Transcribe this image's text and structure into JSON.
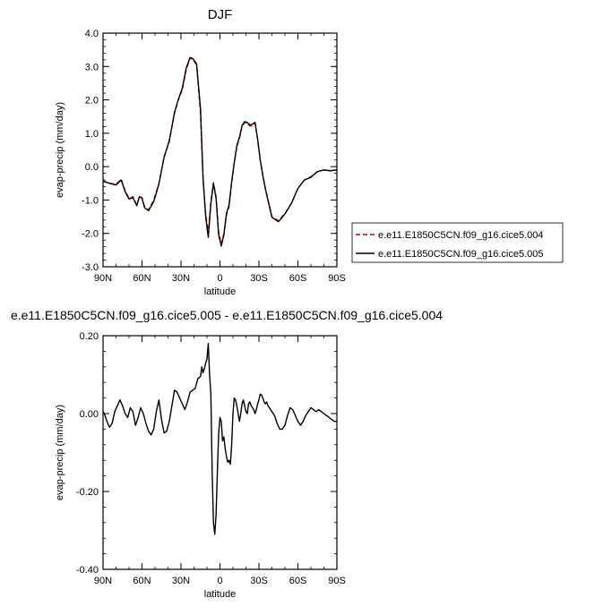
{
  "chart_data": [
    {
      "type": "line",
      "title": "DJF",
      "xlabel": "latitude",
      "ylabel": "evap-precip (mm/day)",
      "xlim": [
        90,
        -90
      ],
      "ylim": [
        -3.0,
        4.0
      ],
      "x_ticks": [
        {
          "value": 90,
          "label": "90N"
        },
        {
          "value": 60,
          "label": "60N"
        },
        {
          "value": 30,
          "label": "30N"
        },
        {
          "value": 0,
          "label": "0"
        },
        {
          "value": -30,
          "label": "30S"
        },
        {
          "value": -60,
          "label": "60S"
        },
        {
          "value": -90,
          "label": "90S"
        }
      ],
      "y_ticks": [
        {
          "value": 4.0,
          "label": "4.0"
        },
        {
          "value": 3.0,
          "label": "3.0"
        },
        {
          "value": 2.0,
          "label": "2.0"
        },
        {
          "value": 1.0,
          "label": "1.0"
        },
        {
          "value": 0.0,
          "label": "0.0"
        },
        {
          "value": -1.0,
          "label": "-1.0"
        },
        {
          "value": -2.0,
          "label": "-2.0"
        },
        {
          "value": -3.0,
          "label": "-3.0"
        }
      ],
      "grid": false,
      "legend_position": "right",
      "x": [
        90,
        85,
        80,
        76,
        73,
        70,
        67,
        64,
        62,
        60,
        58,
        55,
        51,
        47,
        43,
        39,
        35,
        32,
        29,
        26,
        23,
        21,
        18,
        15,
        13,
        11,
        9,
        7,
        5,
        3,
        1,
        -1,
        -3,
        -5,
        -7,
        -9,
        -11,
        -13,
        -15,
        -17,
        -19,
        -21,
        -23,
        -25,
        -27,
        -29,
        -31,
        -33,
        -35,
        -40,
        -45,
        -50,
        -55,
        -60,
        -65,
        -70,
        -75,
        -80,
        -85,
        -90
      ],
      "series": [
        {
          "name": "e.e11.E1850C5CN.f09_g16.cice5.004",
          "color": "#cc0000",
          "dash": true,
          "values": [
            -0.44,
            -0.5,
            -0.53,
            -0.38,
            -0.72,
            -0.95,
            -0.9,
            -1.15,
            -0.9,
            -0.93,
            -1.2,
            -1.3,
            -1.0,
            -0.5,
            0.3,
            0.75,
            1.6,
            2.0,
            2.3,
            2.9,
            3.25,
            3.22,
            3.05,
            1.6,
            -0.4,
            -1.4,
            -2.0,
            -1.05,
            -0.48,
            -0.9,
            -1.95,
            -2.32,
            -2.0,
            -1.45,
            -1.2,
            -0.5,
            0.1,
            0.6,
            0.85,
            1.2,
            1.32,
            1.3,
            1.22,
            1.22,
            1.3,
            0.8,
            0.2,
            -0.25,
            -0.65,
            -1.5,
            -1.62,
            -1.4,
            -1.1,
            -0.65,
            -0.4,
            -0.3,
            -0.15,
            -0.1,
            -0.13,
            -0.1
          ]
        },
        {
          "name": "e.e11.E1850C5CN.f09_g16.cice5.005",
          "color": "#000000",
          "dash": false,
          "values": [
            -0.43,
            -0.5,
            -0.55,
            -0.4,
            -0.75,
            -0.97,
            -0.93,
            -1.17,
            -0.9,
            -0.95,
            -1.23,
            -1.32,
            -1.05,
            -0.52,
            0.28,
            0.78,
            1.62,
            2.02,
            2.35,
            2.95,
            3.27,
            3.24,
            3.08,
            1.75,
            -0.35,
            -1.5,
            -2.12,
            -1.1,
            -0.5,
            -0.95,
            -2.05,
            -2.38,
            -2.05,
            -1.4,
            -1.15,
            -0.45,
            0.12,
            0.63,
            0.88,
            1.23,
            1.35,
            1.32,
            1.25,
            1.27,
            1.33,
            0.82,
            0.2,
            -0.27,
            -0.68,
            -1.52,
            -1.65,
            -1.42,
            -1.1,
            -0.65,
            -0.4,
            -0.32,
            -0.15,
            -0.1,
            -0.12,
            -0.1
          ]
        }
      ]
    },
    {
      "type": "line",
      "title": "e.e11.E1850C5CN.f09_g16.cice5.005 - e.e11.E1850C5CN.f09_g16.cice5.004",
      "xlabel": "latitude",
      "ylabel": "evap-precip (mm/day)",
      "xlim": [
        90,
        -90
      ],
      "ylim": [
        -0.4,
        0.2
      ],
      "x_ticks": [
        {
          "value": 90,
          "label": "90N"
        },
        {
          "value": 60,
          "label": "60N"
        },
        {
          "value": 30,
          "label": "30N"
        },
        {
          "value": 0,
          "label": "0"
        },
        {
          "value": -30,
          "label": "30S"
        },
        {
          "value": -60,
          "label": "60S"
        },
        {
          "value": -90,
          "label": "90S"
        }
      ],
      "y_ticks": [
        {
          "value": 0.2,
          "label": "0.20"
        },
        {
          "value": 0.0,
          "label": "0.00"
        },
        {
          "value": -0.2,
          "label": "-0.20"
        },
        {
          "value": -0.4,
          "label": "-0.40"
        }
      ],
      "grid": false,
      "x": [
        90,
        89,
        87,
        85,
        83,
        81,
        79,
        77,
        75,
        73,
        71,
        69,
        67,
        65,
        63,
        61,
        59,
        57,
        55,
        53,
        51,
        49,
        47,
        45,
        43,
        41,
        39,
        37,
        35,
        33,
        31,
        29,
        27,
        25,
        23,
        21,
        19,
        17,
        15,
        14,
        13,
        12,
        11,
        10,
        9,
        8,
        7,
        6,
        5,
        4,
        3,
        2,
        1,
        0,
        -1,
        -2,
        -3,
        -4,
        -5,
        -6,
        -7,
        -8,
        -9,
        -10,
        -11,
        -12,
        -13,
        -14,
        -15,
        -16,
        -17,
        -18,
        -19,
        -20,
        -21,
        -22,
        -23,
        -24,
        -25,
        -26,
        -27,
        -28,
        -29,
        -30,
        -31,
        -32,
        -33,
        -34,
        -35,
        -36,
        -37,
        -38,
        -40,
        -42,
        -44,
        -46,
        -48,
        -50,
        -52,
        -54,
        -56,
        -58,
        -60,
        -62,
        -64,
        -66,
        -68,
        -70,
        -72,
        -74,
        -76,
        -78,
        -80,
        -82,
        -84,
        -86,
        -88,
        -90
      ],
      "series": [
        {
          "name": "",
          "color": "#000000",
          "dash": false,
          "values": [
            0.005,
            0.0,
            -0.02,
            -0.035,
            -0.025,
            0.005,
            0.02,
            0.035,
            0.02,
            0.0,
            -0.01,
            0.015,
            0.005,
            -0.03,
            -0.01,
            0.015,
            0.0,
            -0.025,
            -0.045,
            -0.055,
            -0.04,
            0.005,
            0.035,
            -0.015,
            -0.05,
            -0.045,
            -0.02,
            0.02,
            0.06,
            0.055,
            0.04,
            0.025,
            0.01,
            0.03,
            0.055,
            0.06,
            0.065,
            0.09,
            0.095,
            0.12,
            0.105,
            0.115,
            0.13,
            0.14,
            0.18,
            0.1,
            0.05,
            -0.15,
            -0.28,
            -0.31,
            -0.26,
            -0.15,
            -0.05,
            -0.01,
            -0.02,
            -0.07,
            -0.06,
            -0.09,
            -0.11,
            -0.125,
            -0.12,
            -0.13,
            -0.08,
            0.0,
            0.04,
            0.035,
            0.02,
            0.0,
            -0.02,
            0.0,
            0.025,
            0.035,
            0.02,
            0.005,
            0.0,
            0.025,
            0.03,
            0.02,
            0.015,
            0.01,
            0.0,
            0.01,
            0.025,
            0.035,
            0.05,
            0.048,
            0.04,
            0.03,
            0.025,
            0.03,
            0.02,
            0.015,
            0.005,
            -0.005,
            -0.025,
            -0.04,
            -0.04,
            -0.03,
            -0.005,
            0.015,
            0.01,
            -0.005,
            -0.02,
            -0.03,
            -0.02,
            -0.005,
            0.005,
            0.015,
            0.01,
            0.005,
            0.01,
            0.005,
            0.0,
            -0.005,
            -0.01,
            -0.015,
            -0.02,
            -0.02
          ]
        }
      ]
    }
  ]
}
